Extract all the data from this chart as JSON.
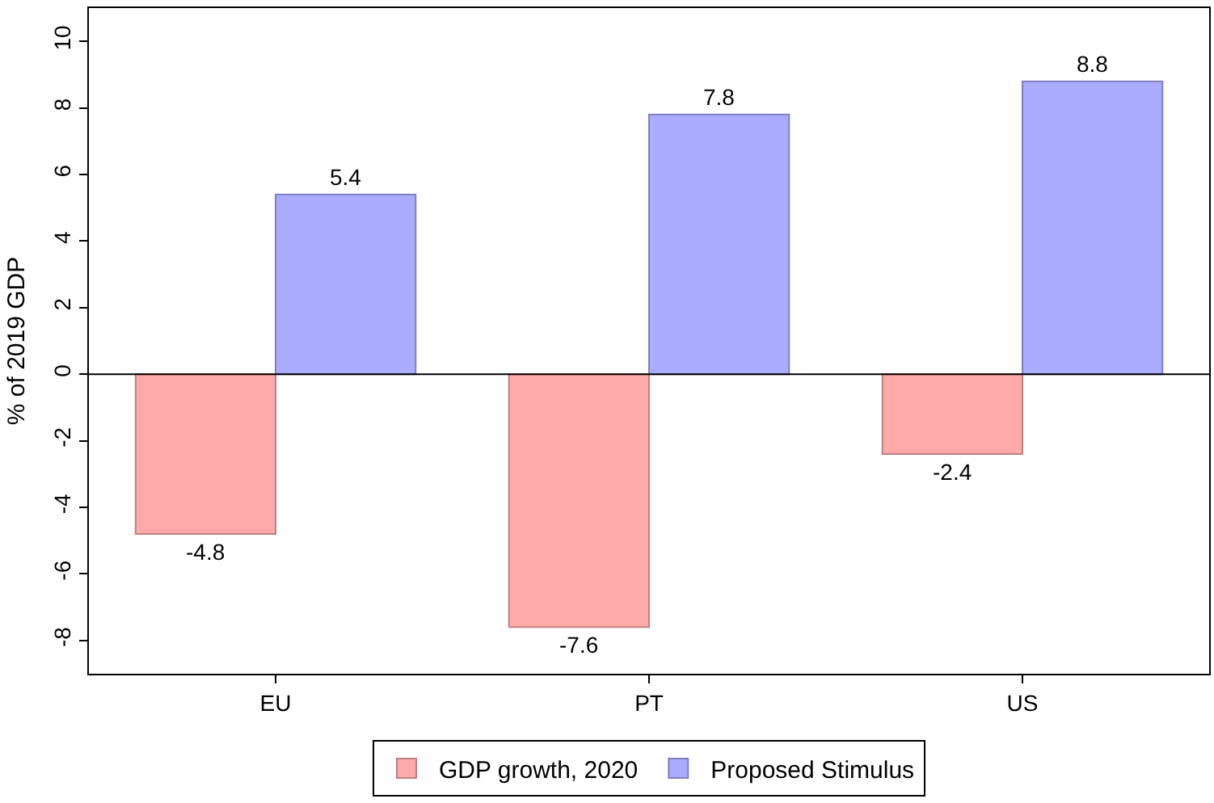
{
  "chart_data": {
    "type": "bar",
    "ylabel": "% of 2019 GDP",
    "categories": [
      "EU",
      "PT",
      "US"
    ],
    "series": [
      {
        "name": "GDP growth, 2020",
        "color": "#ffaaaa",
        "values": [
          -4.8,
          -7.6,
          -2.4
        ]
      },
      {
        "name": "Proposed Stimulus",
        "color": "#aaaaff",
        "values": [
          5.4,
          7.8,
          8.8
        ]
      }
    ],
    "ylim": [
      -9,
      11
    ],
    "yticks": [
      -8,
      -6,
      -4,
      -2,
      0,
      2,
      4,
      6,
      8,
      10
    ],
    "data_labels": true,
    "legend": "bottom",
    "ref_lines": [
      {
        "axis": "y",
        "value": 0,
        "color": "#000000"
      }
    ]
  }
}
